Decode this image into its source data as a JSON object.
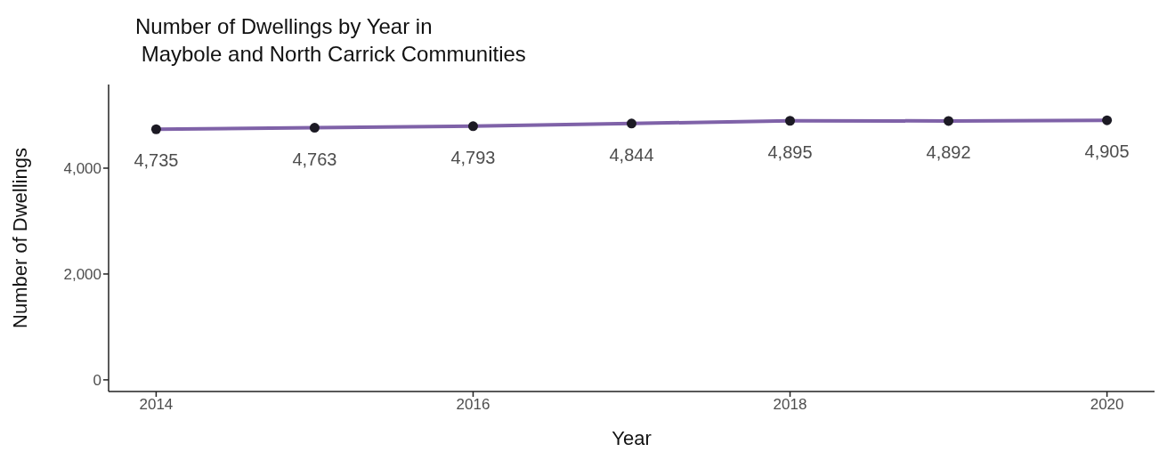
{
  "chart_data": {
    "type": "line",
    "title": "Number of Dwellings by Year in\n Maybole and North Carrick Communities",
    "xlabel": "Year",
    "ylabel": "Number of Dwellings",
    "x": [
      2014,
      2015,
      2016,
      2017,
      2018,
      2019,
      2020
    ],
    "series": [
      {
        "color": "#7f62a8",
        "values": [
          4735,
          4763,
          4793,
          4844,
          4895,
          4892,
          4905
        ],
        "value_labels": [
          "4,735",
          "4,763",
          "4,793",
          "4,844",
          "4,895",
          "4,892",
          "4,905"
        ]
      }
    ],
    "xlim": [
      2013.7,
      2020.3
    ],
    "xticks": [
      2014,
      2016,
      2018,
      2020
    ],
    "ylim": [
      -220,
      5580
    ],
    "yticks": [
      0,
      {
        "value": 2000,
        "label": "2,000"
      },
      {
        "value": 4000,
        "label": "4,000"
      }
    ],
    "grid": false,
    "legend": false,
    "marker": "circle",
    "line_style": "solid"
  }
}
